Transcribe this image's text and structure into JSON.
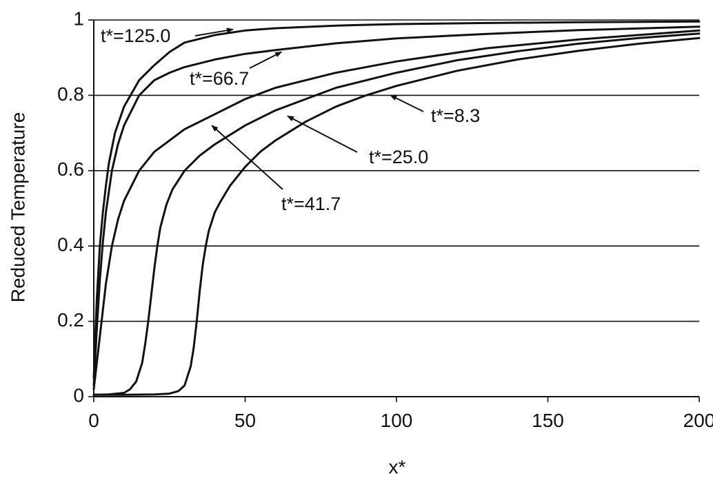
{
  "chart_data": {
    "type": "line",
    "xlabel": "x*",
    "ylabel": "Reduced Temperature",
    "xlim": [
      0,
      200
    ],
    "ylim": [
      0,
      1
    ],
    "x_ticks": [
      "0",
      "50",
      "100",
      "150",
      "200"
    ],
    "y_ticks": [
      "0",
      "0.2",
      "0.4",
      "0.6",
      "0.8",
      "1"
    ],
    "grid": "horizontal",
    "legend": "none",
    "line_color": "#111111",
    "series": [
      {
        "name": "t*=125.0",
        "points": [
          [
            0,
            0.05
          ],
          [
            1,
            0.26
          ],
          [
            2,
            0.4
          ],
          [
            3,
            0.49
          ],
          [
            4,
            0.56
          ],
          [
            5,
            0.62
          ],
          [
            7,
            0.7
          ],
          [
            10,
            0.77
          ],
          [
            15,
            0.84
          ],
          [
            20,
            0.88
          ],
          [
            25,
            0.915
          ],
          [
            30,
            0.94
          ],
          [
            40,
            0.96
          ],
          [
            50,
            0.972
          ],
          [
            60,
            0.978
          ],
          [
            80,
            0.985
          ],
          [
            100,
            0.989
          ],
          [
            130,
            0.992
          ],
          [
            160,
            0.994
          ],
          [
            200,
            0.996
          ]
        ]
      },
      {
        "name": "t*=66.7",
        "points": [
          [
            0,
            0.03
          ],
          [
            1,
            0.18
          ],
          [
            2,
            0.31
          ],
          [
            3,
            0.41
          ],
          [
            4,
            0.49
          ],
          [
            6,
            0.6
          ],
          [
            8,
            0.67
          ],
          [
            10,
            0.72
          ],
          [
            15,
            0.8
          ],
          [
            20,
            0.84
          ],
          [
            25,
            0.86
          ],
          [
            30,
            0.875
          ],
          [
            40,
            0.895
          ],
          [
            50,
            0.91
          ],
          [
            60,
            0.92
          ],
          [
            80,
            0.938
          ],
          [
            100,
            0.951
          ],
          [
            130,
            0.963
          ],
          [
            160,
            0.973
          ],
          [
            200,
            0.982
          ]
        ]
      },
      {
        "name": "t*=41.7",
        "points": [
          [
            0,
            0.02
          ],
          [
            2,
            0.16
          ],
          [
            4,
            0.3
          ],
          [
            6,
            0.4
          ],
          [
            8,
            0.47
          ],
          [
            10,
            0.52
          ],
          [
            15,
            0.6
          ],
          [
            20,
            0.65
          ],
          [
            30,
            0.71
          ],
          [
            40,
            0.75
          ],
          [
            50,
            0.79
          ],
          [
            60,
            0.82
          ],
          [
            80,
            0.86
          ],
          [
            100,
            0.89
          ],
          [
            130,
            0.925
          ],
          [
            160,
            0.948
          ],
          [
            200,
            0.972
          ]
        ]
      },
      {
        "name": "t*=25.0",
        "points": [
          [
            0,
            0.005
          ],
          [
            5,
            0.006
          ],
          [
            10,
            0.01
          ],
          [
            12,
            0.02
          ],
          [
            14,
            0.04
          ],
          [
            16,
            0.09
          ],
          [
            17,
            0.14
          ],
          [
            18,
            0.2
          ],
          [
            19,
            0.27
          ],
          [
            20,
            0.34
          ],
          [
            21,
            0.4
          ],
          [
            22,
            0.45
          ],
          [
            24,
            0.51
          ],
          [
            26,
            0.55
          ],
          [
            30,
            0.6
          ],
          [
            35,
            0.64
          ],
          [
            40,
            0.67
          ],
          [
            50,
            0.72
          ],
          [
            60,
            0.76
          ],
          [
            70,
            0.79
          ],
          [
            80,
            0.82
          ],
          [
            100,
            0.86
          ],
          [
            120,
            0.893
          ],
          [
            140,
            0.917
          ],
          [
            160,
            0.937
          ],
          [
            180,
            0.952
          ],
          [
            200,
            0.964
          ]
        ]
      },
      {
        "name": "t*=8.3",
        "points": [
          [
            0,
            0.005
          ],
          [
            10,
            0.005
          ],
          [
            20,
            0.006
          ],
          [
            25,
            0.008
          ],
          [
            28,
            0.015
          ],
          [
            30,
            0.03
          ],
          [
            32,
            0.08
          ],
          [
            33,
            0.13
          ],
          [
            34,
            0.2
          ],
          [
            35,
            0.28
          ],
          [
            36,
            0.35
          ],
          [
            37,
            0.4
          ],
          [
            38,
            0.44
          ],
          [
            40,
            0.49
          ],
          [
            42,
            0.52
          ],
          [
            45,
            0.56
          ],
          [
            50,
            0.61
          ],
          [
            55,
            0.65
          ],
          [
            60,
            0.68
          ],
          [
            70,
            0.73
          ],
          [
            80,
            0.77
          ],
          [
            90,
            0.8
          ],
          [
            100,
            0.825
          ],
          [
            120,
            0.865
          ],
          [
            140,
            0.895
          ],
          [
            160,
            0.918
          ],
          [
            180,
            0.937
          ],
          [
            200,
            0.952
          ]
        ]
      }
    ],
    "annotations": [
      {
        "text": "t*=125.0",
        "series": "t*=125.0",
        "arrow_to": [
          46,
          0.975
        ]
      },
      {
        "text": "t*=66.7",
        "series": "t*=66.7",
        "arrow_to": [
          62,
          0.915
        ]
      },
      {
        "text": "t*=41.7",
        "series": "t*=41.7",
        "arrow_to": [
          39,
          0.72
        ]
      },
      {
        "text": "t*=25.0",
        "series": "t*=25.0",
        "arrow_to": [
          64,
          0.745
        ]
      },
      {
        "text": "t*=8.3",
        "series": "t*=8.3",
        "arrow_to": [
          98,
          0.8
        ]
      }
    ]
  }
}
